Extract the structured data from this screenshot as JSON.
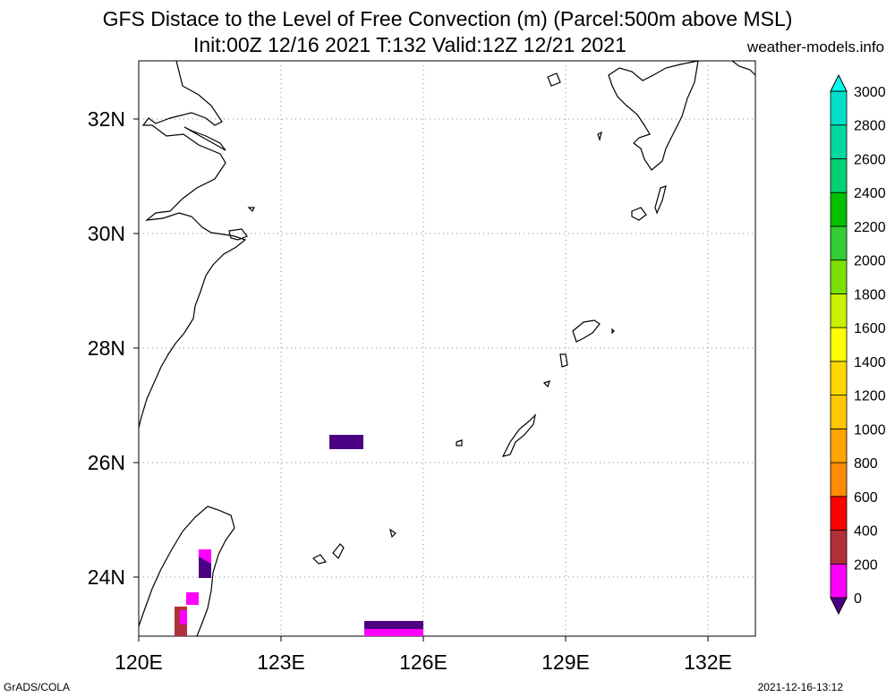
{
  "title": {
    "line1": "GFS Distace to the Level of Free Convection (m) (Parcel:500m above MSL)",
    "line2": "Init:00Z 12/16 2021 T:132 Valid:12Z 12/21 2021"
  },
  "source": "weather-models.info",
  "footer": {
    "left": "GrADS/COLA",
    "right": "2021-12-16-13:12"
  },
  "map": {
    "lon_range": [
      120,
      133.3
    ],
    "lat_range": [
      23.0,
      33.1
    ],
    "lon_ticks": [
      {
        "value": 120,
        "label": "120E"
      },
      {
        "value": 123,
        "label": "123E"
      },
      {
        "value": 126,
        "label": "126E"
      },
      {
        "value": 129,
        "label": "129E"
      },
      {
        "value": 132,
        "label": "132E"
      }
    ],
    "lat_ticks": [
      {
        "value": 24,
        "label": "24N"
      },
      {
        "value": 26,
        "label": "26N"
      },
      {
        "value": 28,
        "label": "28N"
      },
      {
        "value": 30,
        "label": "30N"
      },
      {
        "value": 32,
        "label": "32N"
      }
    ],
    "grid": true,
    "coastline_color": "#000000"
  },
  "colorbar": {
    "levels": [
      "0",
      "200",
      "400",
      "600",
      "800",
      "1000",
      "1200",
      "1400",
      "1600",
      "1800",
      "2000",
      "2200",
      "2400",
      "2600",
      "2800",
      "3000"
    ],
    "colors": [
      "#4b0082",
      "#ff00ff",
      "#b0303a",
      "#ff0000",
      "#ff8c00",
      "#ffa500",
      "#ffc800",
      "#ffd700",
      "#ffff00",
      "#c8f000",
      "#7ce000",
      "#32cd32",
      "#00c000",
      "#00d070",
      "#00d8a0",
      "#00e0c8",
      "#00ffee"
    ]
  }
}
